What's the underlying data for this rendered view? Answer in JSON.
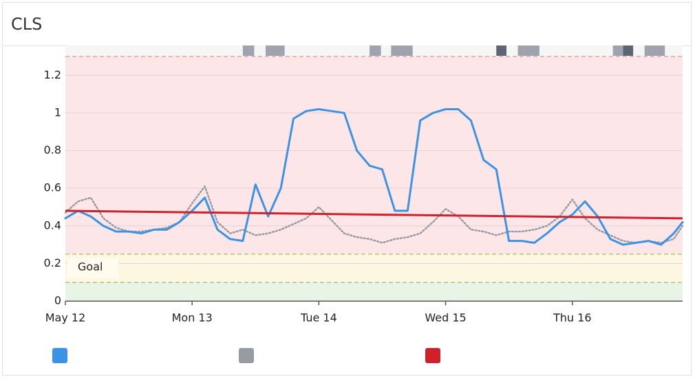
{
  "header": {
    "title": "CLS"
  },
  "chart_data": {
    "type": "line",
    "x": [
      0,
      0.1,
      0.2,
      0.3,
      0.4,
      0.5,
      0.6,
      0.7,
      0.8,
      0.9,
      1.0,
      1.1,
      1.2,
      1.3,
      1.4,
      1.5,
      1.6,
      1.7,
      1.8,
      1.9,
      2.0,
      2.1,
      2.2,
      2.3,
      2.4,
      2.5,
      2.6,
      2.7,
      2.8,
      2.9,
      3.0,
      3.1,
      3.2,
      3.3,
      3.4,
      3.5,
      3.6,
      3.7,
      3.8,
      3.9,
      4.0,
      4.1,
      4.2,
      4.3,
      4.4,
      4.5,
      4.6,
      4.7,
      4.8,
      4.87
    ],
    "series": [
      {
        "color": "#3b93e6",
        "style": "solid",
        "values": [
          0.44,
          0.48,
          0.45,
          0.4,
          0.37,
          0.37,
          0.36,
          0.38,
          0.38,
          0.42,
          0.48,
          0.55,
          0.38,
          0.33,
          0.32,
          0.62,
          0.45,
          0.6,
          0.97,
          1.01,
          1.02,
          1.01,
          1.0,
          0.8,
          0.72,
          0.7,
          0.48,
          0.48,
          0.96,
          1.0,
          1.02,
          1.02,
          0.96,
          0.75,
          0.7,
          0.32,
          0.32,
          0.31,
          0.36,
          0.42,
          0.46,
          0.53,
          0.45,
          0.33,
          0.3,
          0.31,
          0.32,
          0.3,
          0.36,
          0.42
        ]
      },
      {
        "color": "#979ba3",
        "style": "dotted",
        "values": [
          0.47,
          0.53,
          0.55,
          0.44,
          0.39,
          0.37,
          0.37,
          0.38,
          0.39,
          0.42,
          0.52,
          0.61,
          0.42,
          0.36,
          0.38,
          0.35,
          0.36,
          0.38,
          0.41,
          0.44,
          0.5,
          0.43,
          0.36,
          0.34,
          0.33,
          0.31,
          0.33,
          0.34,
          0.36,
          0.42,
          0.49,
          0.45,
          0.38,
          0.37,
          0.35,
          0.37,
          0.37,
          0.38,
          0.4,
          0.45,
          0.54,
          0.44,
          0.38,
          0.35,
          0.32,
          0.31,
          0.32,
          0.31,
          0.33,
          0.4
        ]
      }
    ],
    "trend": {
      "color": "#d0202a",
      "x": [
        0,
        4.87
      ],
      "values": [
        0.48,
        0.44
      ]
    },
    "zones": [
      {
        "from": 0.25,
        "to": 1.3,
        "color": "#fde6e8",
        "line": "#f2a19a"
      },
      {
        "from": 0.1,
        "to": 0.25,
        "color": "#fdf6e1",
        "line": "#b7c27a"
      },
      {
        "from": 0,
        "to": 0.1,
        "color": "#e8f5e6"
      }
    ],
    "goal_label": "Goal",
    "events": [
      {
        "start": 1.4,
        "end": 1.49,
        "color": "#9ea3ad"
      },
      {
        "start": 1.58,
        "end": 1.73,
        "color": "#9ea3ad"
      },
      {
        "start": 2.4,
        "end": 2.49,
        "color": "#9ea3ad"
      },
      {
        "start": 2.57,
        "end": 2.74,
        "color": "#9ea3ad"
      },
      {
        "start": 3.4,
        "end": 3.48,
        "color": "#5f6673"
      },
      {
        "start": 3.57,
        "end": 3.74,
        "color": "#9ea3ad"
      },
      {
        "start": 4.32,
        "end": 4.4,
        "color": "#9ea3ad"
      },
      {
        "start": 4.4,
        "end": 4.48,
        "color": "#5f6673"
      },
      {
        "start": 4.57,
        "end": 4.73,
        "color": "#9ea3ad"
      }
    ],
    "xlim": [
      0,
      4.87
    ],
    "xticks": [
      {
        "value": 0,
        "label": "May 12"
      },
      {
        "value": 1,
        "label": "Mon 13"
      },
      {
        "value": 2,
        "label": "Tue 14"
      },
      {
        "value": 3,
        "label": "Wed 15"
      },
      {
        "value": 4,
        "label": "Thu 16"
      }
    ],
    "ylim": [
      0,
      1.3
    ],
    "yticks": [
      0,
      0.2,
      0.4,
      0.6,
      0.8,
      1,
      1.2
    ],
    "grid": true
  }
}
